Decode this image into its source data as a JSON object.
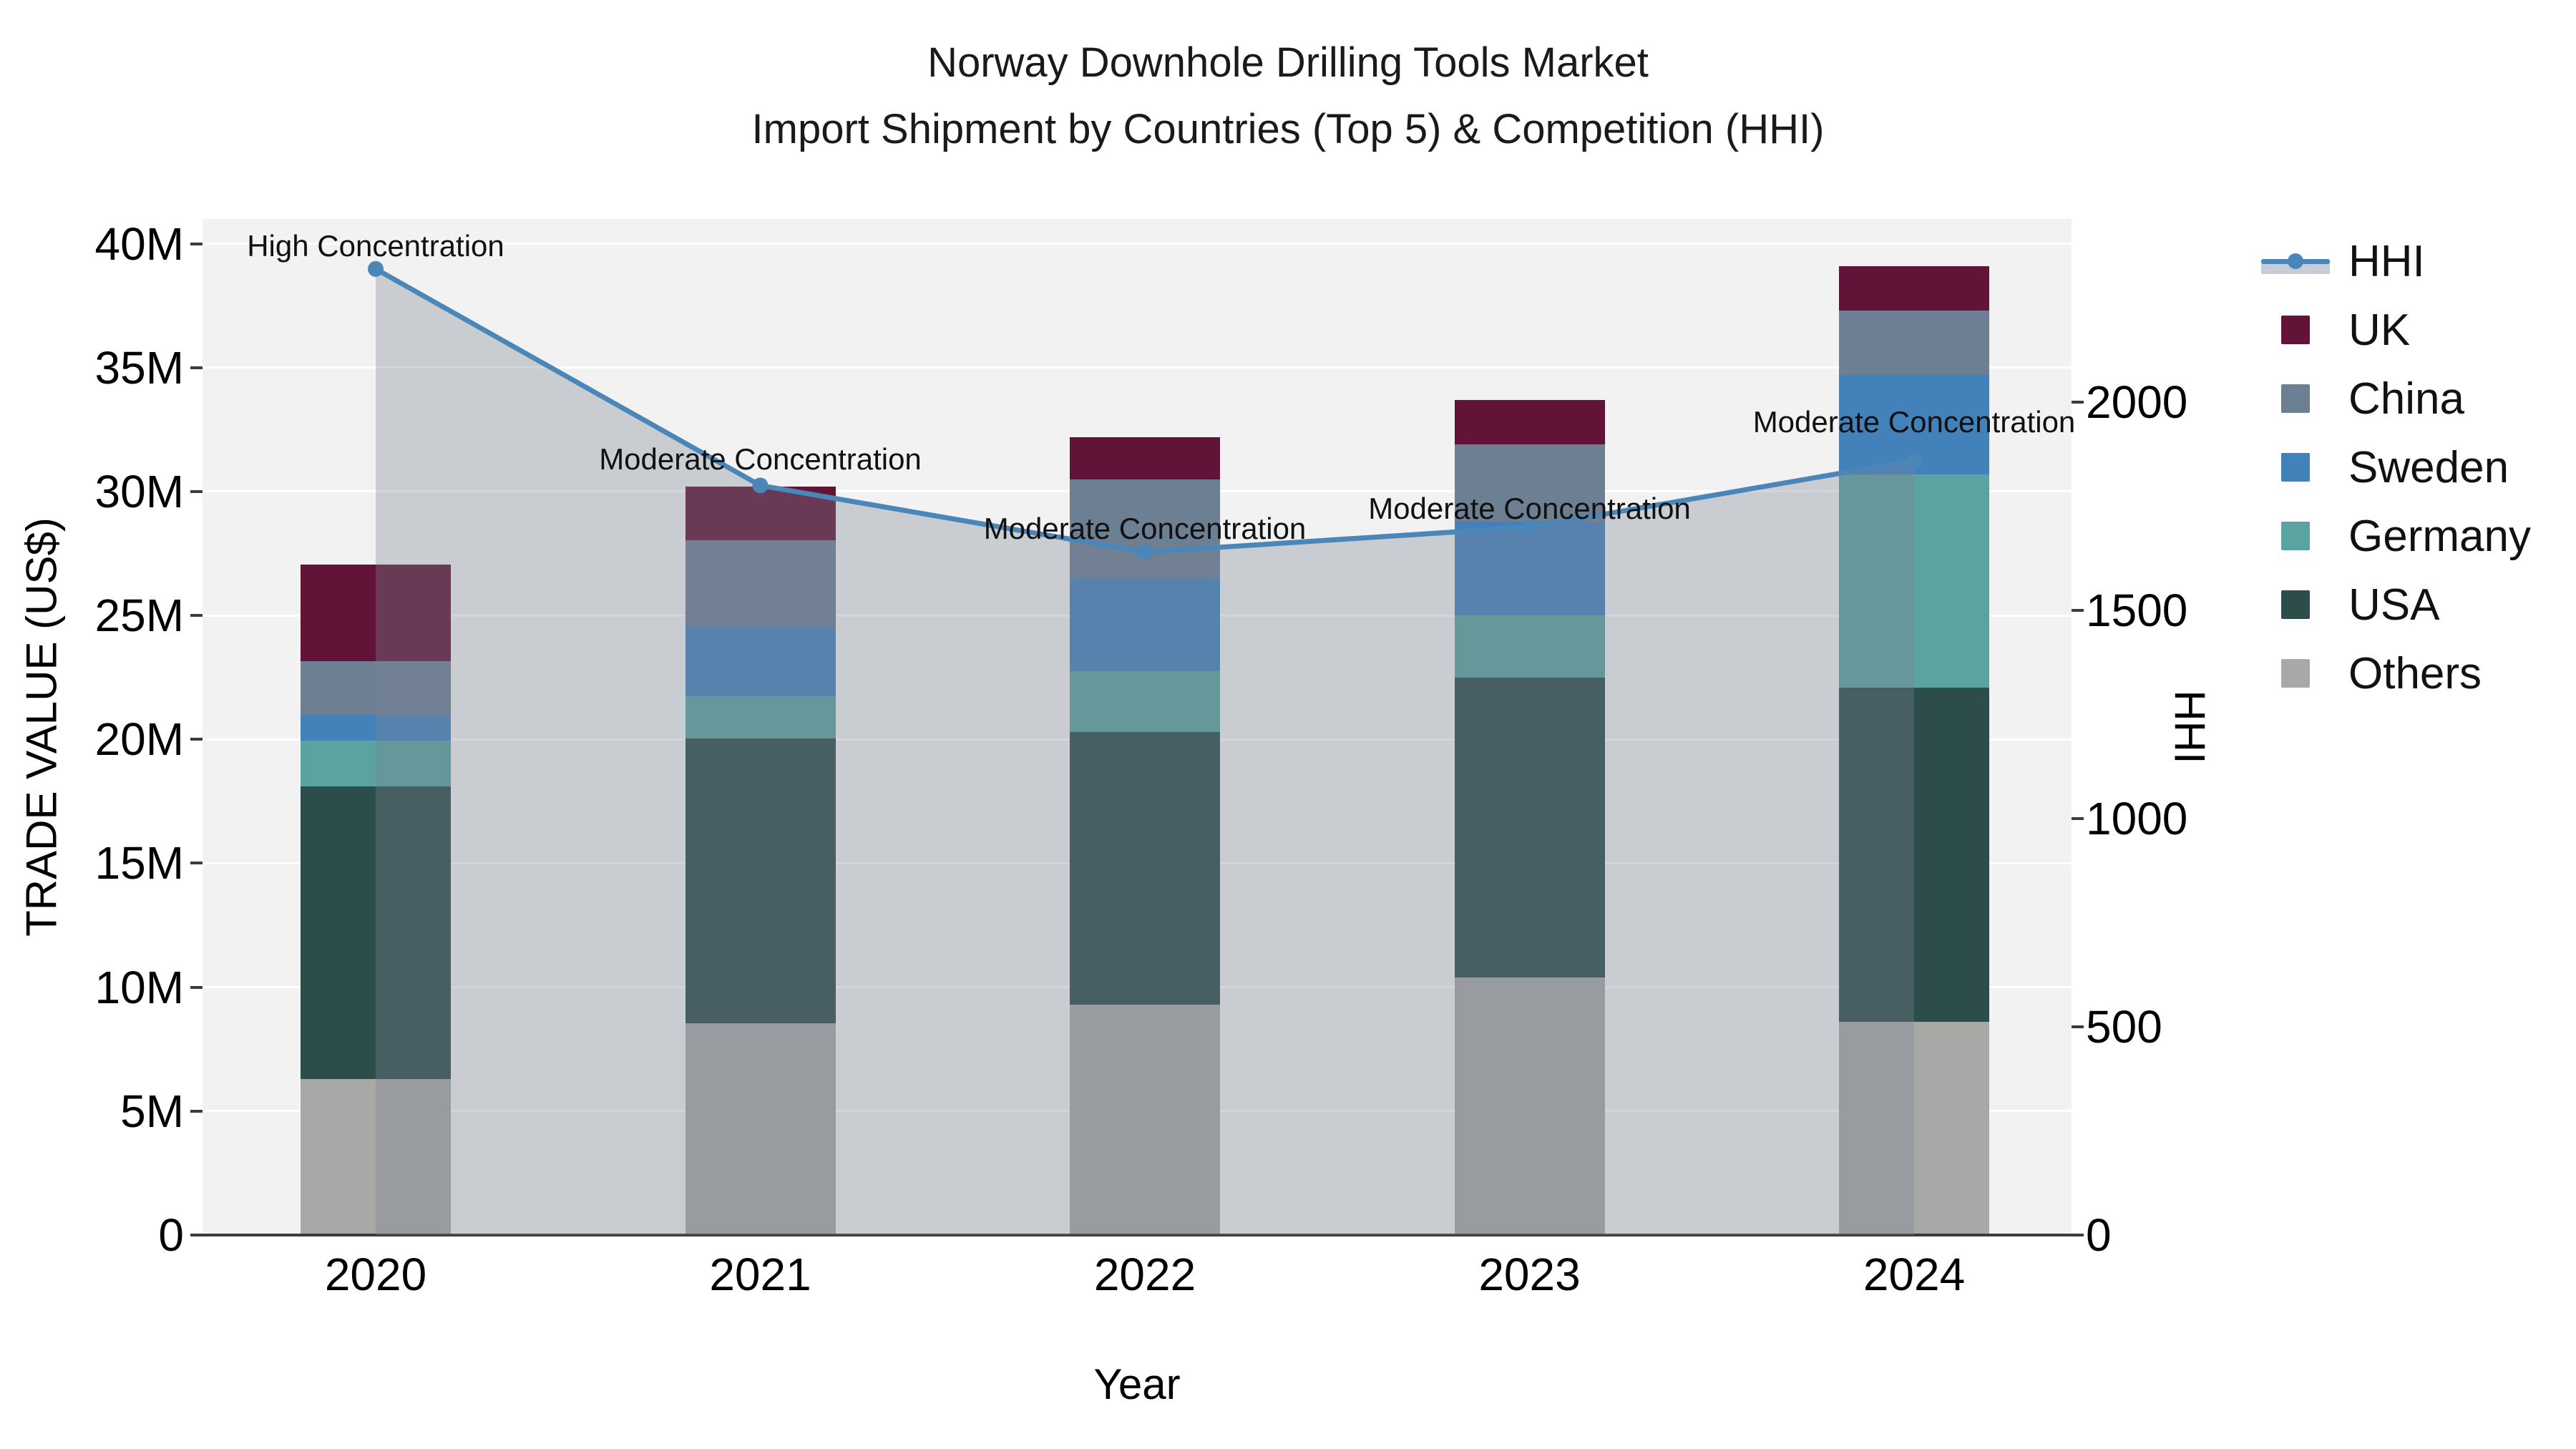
{
  "title": {
    "line1": "Norway Downhole Drilling Tools Market",
    "line2": "Import Shipment by Countries (Top 5) & Competition (HHI)"
  },
  "axes": {
    "x_title": "Year",
    "y_left_title": "TRADE VALUE (US$)",
    "y_right_title": "HHI",
    "x_ticks": [
      "2020",
      "2021",
      "2022",
      "2023",
      "2024"
    ],
    "y_left_ticks": [
      {
        "label": "0",
        "value": 0
      },
      {
        "label": "5M",
        "value": 5
      },
      {
        "label": "10M",
        "value": 10
      },
      {
        "label": "15M",
        "value": 15
      },
      {
        "label": "20M",
        "value": 20
      },
      {
        "label": "25M",
        "value": 25
      },
      {
        "label": "30M",
        "value": 30
      },
      {
        "label": "35M",
        "value": 35
      },
      {
        "label": "40M",
        "value": 40
      }
    ],
    "y_right_ticks": [
      {
        "label": "0",
        "value": 0
      },
      {
        "label": "500",
        "value": 500
      },
      {
        "label": "1000",
        "value": 1000
      },
      {
        "label": "1500",
        "value": 1500
      },
      {
        "label": "2000",
        "value": 2000
      }
    ]
  },
  "chart_data": {
    "type": "combo: stacked-bar (left axis) + line-with-area (right axis)",
    "title": "Norway Downhole Drilling Tools Market — Import Shipment by Countries (Top 5) & Competition (HHI)",
    "categories": [
      "2020",
      "2021",
      "2022",
      "2023",
      "2024"
    ],
    "unit_left": "Trade value, millions US$",
    "stack_order_bottom_to_top": [
      "Others",
      "USA",
      "Germany",
      "Sweden",
      "China",
      "UK"
    ],
    "series": [
      {
        "name": "Others",
        "values": [
          6.3,
          8.55,
          9.3,
          10.4,
          8.6
        ]
      },
      {
        "name": "USA",
        "values": [
          11.8,
          11.5,
          11.0,
          12.1,
          13.5
        ]
      },
      {
        "name": "Germany",
        "values": [
          1.85,
          1.7,
          2.45,
          2.5,
          8.6
        ]
      },
      {
        "name": "Sweden",
        "values": [
          1.05,
          2.8,
          3.75,
          3.8,
          4.0
        ]
      },
      {
        "name": "China",
        "values": [
          2.15,
          3.5,
          4.0,
          3.1,
          2.6
        ]
      },
      {
        "name": "UK",
        "values": [
          3.9,
          2.15,
          1.7,
          1.8,
          1.8
        ]
      }
    ],
    "bar_totals": [
      27.05,
      30.2,
      32.2,
      33.7,
      39.1
    ],
    "line_series": {
      "name": "HHI",
      "axis": "right",
      "values": [
        2320,
        1800,
        1640,
        1700,
        1860
      ],
      "has_area_fill": true
    },
    "annotations": [
      {
        "text": "High Concentration",
        "category_index": 0,
        "y_left": 39.9
      },
      {
        "text": "Moderate Concentration",
        "category_index": 1,
        "y_left": 31.3
      },
      {
        "text": "Moderate Concentration",
        "category_index": 2,
        "y_left": 28.5
      },
      {
        "text": "Moderate Concentration",
        "category_index": 3,
        "y_left": 29.3
      },
      {
        "text": "Moderate Concentration",
        "category_index": 4,
        "y_left": 32.8
      }
    ],
    "ylim_left": [
      0,
      41
    ],
    "ylim_right": [
      0,
      2440
    ],
    "grid": "horizontal white gridlines at 5M steps",
    "legend_position": "right"
  },
  "legend": {
    "items": [
      {
        "label": "HHI",
        "type": "line",
        "color": "#4A86B8"
      },
      {
        "label": "UK",
        "type": "square",
        "color": "#611338"
      },
      {
        "label": "China",
        "type": "square",
        "color": "#6D7F92"
      },
      {
        "label": "Sweden",
        "type": "square",
        "color": "#4381BB"
      },
      {
        "label": "Germany",
        "type": "square",
        "color": "#5BA3A0"
      },
      {
        "label": "USA",
        "type": "square",
        "color": "#2D4D4A"
      },
      {
        "label": "Others",
        "type": "square",
        "color": "#A8A8A6"
      }
    ]
  },
  "colors": {
    "hhi_line": "#4A86B8",
    "hhi_area_fill": "rgba(122,133,148,0.34)",
    "plot_background": "#F2F2F2",
    "gridline": "#FFFFFF",
    "axis_line": "#3C3C3C",
    "UK": "#611338",
    "China": "#6D7F92",
    "Sweden": "#4381BB",
    "Germany": "#5BA3A0",
    "USA": "#2D4D4A",
    "Others": "#A8A8A6"
  }
}
